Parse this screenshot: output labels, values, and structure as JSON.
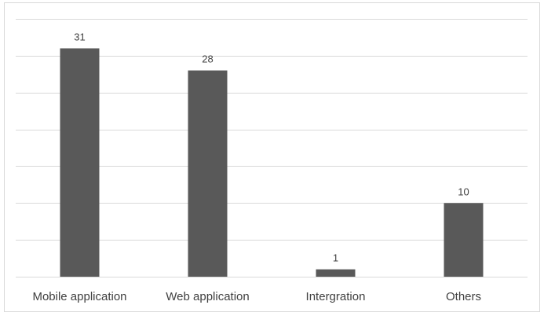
{
  "chart_data": {
    "type": "bar",
    "categories": [
      "Mobile application",
      "Web application",
      "Intergration",
      "Others"
    ],
    "values": [
      31,
      28,
      1,
      10
    ],
    "data_labels": [
      "31",
      "28",
      "1",
      "10"
    ],
    "title": "",
    "xlabel": "",
    "ylabel": "",
    "ylim": [
      0,
      35
    ],
    "gridlines": true,
    "y_tick_labels_visible": false,
    "legend": "none",
    "bar_color": "#595959",
    "grid_color": "#d9d9d9",
    "axis_color": "#d9d9d9"
  }
}
